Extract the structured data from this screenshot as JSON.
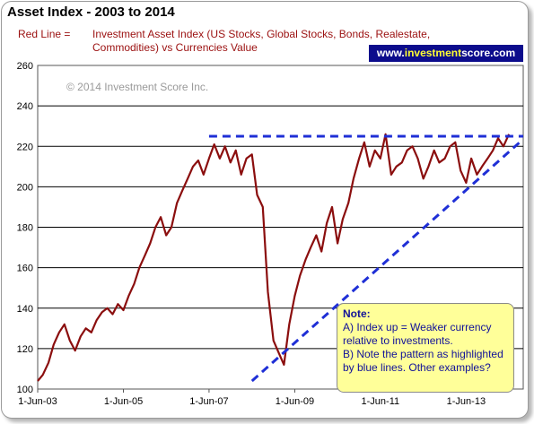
{
  "chart_data": {
    "type": "line",
    "title": "Asset Index - 2003 to 2014",
    "subtitle_key": "Red Line =",
    "subtitle_text": "Investment Asset Index  (US Stocks, Global Stocks, Bonds, Realestate, Commodities)  vs Currencies Value",
    "watermark": "© 2014 Investment Score Inc.",
    "badge": {
      "prefix": "www.",
      "highlight": "investment",
      "suffix": "score.com"
    },
    "ylim": [
      100,
      260
    ],
    "yticks": [
      "260",
      "240",
      "220",
      "200",
      "180",
      "160",
      "140",
      "120",
      "100"
    ],
    "xlim": [
      "2003-06-01",
      "2014-10-01"
    ],
    "xticks": [
      {
        "date": "2003-06-01",
        "label": "1-Jun-03"
      },
      {
        "date": "2005-06-01",
        "label": "1-Jun-05"
      },
      {
        "date": "2007-06-01",
        "label": "1-Jun-07"
      },
      {
        "date": "2009-06-01",
        "label": "1-Jun-09"
      },
      {
        "date": "2011-06-01",
        "label": "1-Jun-11"
      },
      {
        "date": "2013-06-01",
        "label": "1-Jun-13"
      }
    ],
    "grid": true,
    "line_color": "#8b0e0e",
    "trend_color": "#1f2fd6",
    "series": [
      {
        "x": [
          "2003-06-01",
          "2003-07-15",
          "2003-09-01",
          "2003-10-15",
          "2003-12-01",
          "2004-01-15",
          "2004-03-01",
          "2004-04-15",
          "2004-06-01",
          "2004-07-15",
          "2004-09-01",
          "2004-10-15",
          "2004-12-01",
          "2005-01-15",
          "2005-03-01",
          "2005-04-15",
          "2005-06-01",
          "2005-07-15",
          "2005-09-01",
          "2005-10-15",
          "2005-12-01",
          "2006-01-15",
          "2006-03-01",
          "2006-04-15",
          "2006-06-01",
          "2006-07-15",
          "2006-09-01",
          "2006-10-15",
          "2006-12-01",
          "2007-01-15",
          "2007-03-01",
          "2007-04-15",
          "2007-06-01",
          "2007-07-15",
          "2007-09-01",
          "2007-10-15",
          "2007-12-01",
          "2008-01-15",
          "2008-03-01",
          "2008-04-15",
          "2008-06-01",
          "2008-07-15",
          "2008-09-01",
          "2008-10-15",
          "2008-12-01",
          "2009-01-15",
          "2009-03-01",
          "2009-04-15",
          "2009-06-01",
          "2009-07-15",
          "2009-09-01",
          "2009-10-15",
          "2009-12-01",
          "2010-01-15",
          "2010-03-01",
          "2010-04-15",
          "2010-06-01",
          "2010-07-15",
          "2010-09-01",
          "2010-10-15",
          "2010-12-01",
          "2011-01-15",
          "2011-03-01",
          "2011-04-15",
          "2011-06-01",
          "2011-07-15",
          "2011-09-01",
          "2011-10-15",
          "2011-12-01",
          "2012-01-15",
          "2012-03-01",
          "2012-04-15",
          "2012-06-01",
          "2012-07-15",
          "2012-09-01",
          "2012-10-15",
          "2012-12-01",
          "2013-01-15",
          "2013-03-01",
          "2013-04-15",
          "2013-06-01",
          "2013-07-15",
          "2013-09-01",
          "2013-10-15",
          "2013-12-01",
          "2014-01-15",
          "2014-03-01",
          "2014-04-15",
          "2014-06-01"
        ],
        "values": [
          104,
          107,
          113,
          122,
          128,
          132,
          124,
          119,
          126,
          130,
          128,
          134,
          138,
          140,
          137,
          142,
          139,
          146,
          152,
          160,
          166,
          172,
          180,
          185,
          176,
          180,
          192,
          198,
          204,
          210,
          213,
          206,
          214,
          221,
          214,
          220,
          212,
          218,
          206,
          214,
          216,
          196,
          190,
          148,
          124,
          118,
          112,
          132,
          146,
          156,
          164,
          170,
          176,
          168,
          182,
          190,
          172,
          184,
          192,
          204,
          214,
          222,
          210,
          218,
          214,
          226,
          206,
          210,
          212,
          218,
          220,
          214,
          204,
          210,
          218,
          212,
          214,
          220,
          222,
          208,
          202,
          214,
          206,
          210,
          214,
          218,
          224,
          220,
          226
        ]
      }
    ],
    "trendlines": [
      {
        "from": {
          "x": "2007-06-01",
          "y": 225
        },
        "to": {
          "x": "2014-10-01",
          "y": 225
        }
      },
      {
        "from": {
          "x": "2008-06-01",
          "y": 104
        },
        "to": {
          "x": "2014-09-01",
          "y": 222
        }
      }
    ]
  },
  "note": {
    "title": "Note:",
    "line_a": "A) Index up = Weaker currency relative to investments.",
    "line_b": "B) Note the pattern as highlighted by blue lines.  Other examples?"
  }
}
